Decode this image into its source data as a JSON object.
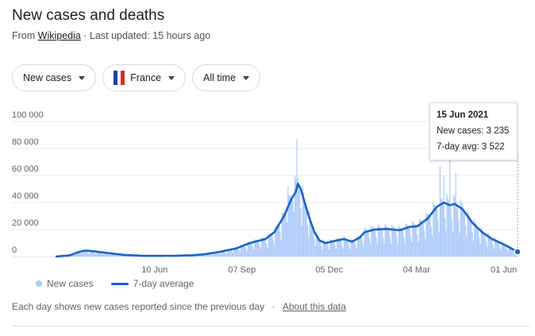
{
  "header": {
    "title": "New cases and deaths",
    "from_label": "From",
    "source_link": "Wikipedia",
    "updated": "· Last updated: 15 hours ago"
  },
  "filters": {
    "metric": "New cases",
    "country": "France",
    "range": "All time"
  },
  "tooltip": {
    "date": "15 Jun 2021",
    "new_cases": "New cases: 3 235",
    "avg": "7-day avg: 3 522"
  },
  "legend": {
    "bars": "New cases",
    "line": "7-day average"
  },
  "footer": {
    "note": "Each day shows new cases reported since the previous day",
    "separator": "·",
    "about_link": "About this data"
  },
  "colors": {
    "bar": "#aecbfa",
    "line": "#1a63c6",
    "grid": "#e8eaed"
  },
  "chart_data": {
    "type": "bar",
    "title": "New cases and deaths",
    "series": [
      {
        "name": "New cases",
        "type": "bar"
      },
      {
        "name": "7-day average",
        "type": "line"
      }
    ],
    "y_ticks": [
      "100 000",
      "80 000",
      "60 000",
      "40 000",
      "20 000",
      "0"
    ],
    "y_tick_values": [
      100000,
      80000,
      60000,
      40000,
      20000,
      0
    ],
    "ylim": [
      0,
      100000
    ],
    "x_ticks": [
      "10 Jun",
      "07 Sep",
      "05 Dec",
      "04 Mar",
      "01 Jun"
    ],
    "x_tick_dates": [
      "2020-06-10",
      "2020-09-07",
      "2020-12-05",
      "2021-03-04",
      "2021-06-01"
    ],
    "x_range": [
      "2020-03-01",
      "2021-06-15"
    ],
    "avg_points": [
      [
        "2020-03-01",
        0
      ],
      [
        "2020-03-15",
        800
      ],
      [
        "2020-03-25",
        3500
      ],
      [
        "2020-04-01",
        4500
      ],
      [
        "2020-04-10",
        3800
      ],
      [
        "2020-04-25",
        2500
      ],
      [
        "2020-05-10",
        1200
      ],
      [
        "2020-06-01",
        500
      ],
      [
        "2020-07-01",
        600
      ],
      [
        "2020-07-20",
        1000
      ],
      [
        "2020-08-01",
        1800
      ],
      [
        "2020-08-15",
        3500
      ],
      [
        "2020-09-01",
        6000
      ],
      [
        "2020-09-15",
        10000
      ],
      [
        "2020-10-01",
        13000
      ],
      [
        "2020-10-10",
        18000
      ],
      [
        "2020-10-20",
        30000
      ],
      [
        "2020-10-27",
        42000
      ],
      [
        "2020-11-01",
        48000
      ],
      [
        "2020-11-03",
        54000
      ],
      [
        "2020-11-06",
        50000
      ],
      [
        "2020-11-10",
        40000
      ],
      [
        "2020-11-15",
        28000
      ],
      [
        "2020-11-20",
        18000
      ],
      [
        "2020-11-25",
        12000
      ],
      [
        "2020-12-01",
        10000
      ],
      [
        "2020-12-10",
        11500
      ],
      [
        "2020-12-20",
        13000
      ],
      [
        "2020-12-28",
        11000
      ],
      [
        "2021-01-05",
        14000
      ],
      [
        "2021-01-10",
        18000
      ],
      [
        "2021-01-20",
        20000
      ],
      [
        "2021-02-01",
        20500
      ],
      [
        "2021-02-15",
        19500
      ],
      [
        "2021-02-25",
        22000
      ],
      [
        "2021-03-05",
        22500
      ],
      [
        "2021-03-15",
        28000
      ],
      [
        "2021-03-25",
        37000
      ],
      [
        "2021-04-01",
        40000
      ],
      [
        "2021-04-07",
        38000
      ],
      [
        "2021-04-12",
        39000
      ],
      [
        "2021-04-20",
        35000
      ],
      [
        "2021-04-30",
        25000
      ],
      [
        "2021-05-10",
        18000
      ],
      [
        "2021-05-20",
        13000
      ],
      [
        "2021-06-01",
        9000
      ],
      [
        "2021-06-10",
        5500
      ],
      [
        "2021-06-15",
        3522
      ]
    ],
    "daily_peaks": [
      [
        "2020-11-02",
        87000
      ],
      [
        "2020-10-31",
        60000
      ],
      [
        "2020-10-24",
        52000
      ],
      [
        "2021-04-07",
        78000
      ],
      [
        "2021-03-28",
        67000
      ],
      [
        "2021-04-01",
        60000
      ],
      [
        "2021-04-13",
        62000
      ],
      [
        "2021-06-15",
        3235
      ]
    ],
    "selected": {
      "date": "2021-06-15",
      "new_cases": 3235,
      "avg": 3522
    }
  }
}
